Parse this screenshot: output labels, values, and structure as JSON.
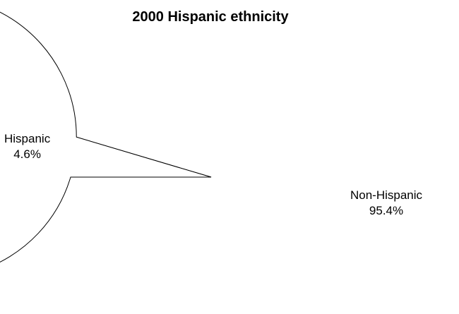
{
  "chart_data": {
    "type": "pie",
    "title": "2000 Hispanic ethnicity",
    "slices": [
      {
        "name": "Hispanic",
        "value": 4.6,
        "display": "4.6%",
        "color": "#999999"
      },
      {
        "name": "Non-Hispanic",
        "value": 95.4,
        "display": "95.4%",
        "color": "#ffffff"
      }
    ],
    "legend": "none"
  }
}
